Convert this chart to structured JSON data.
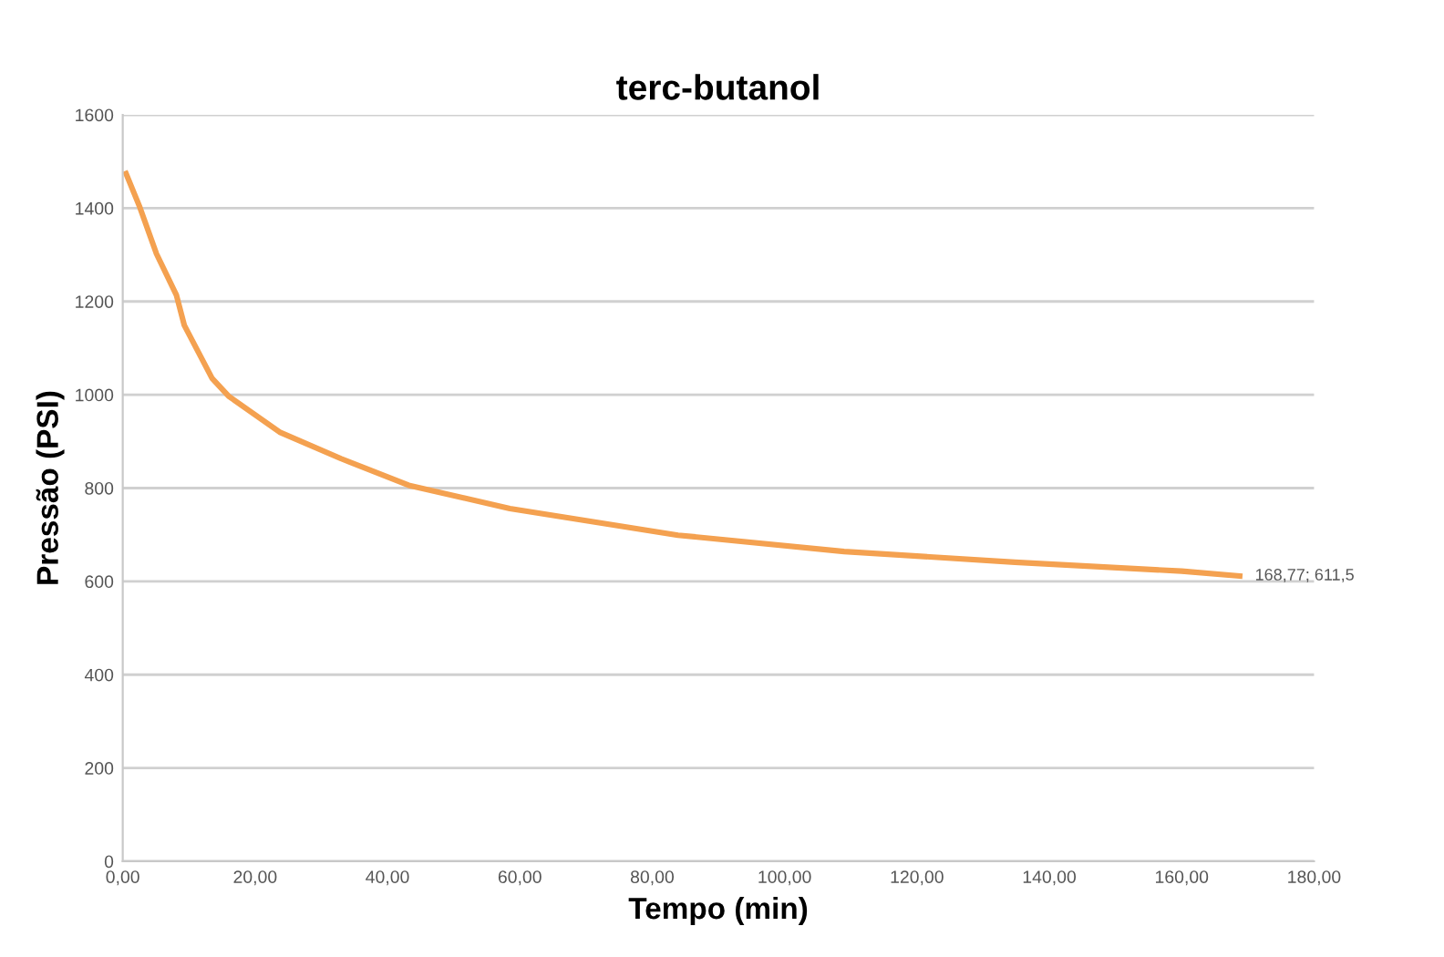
{
  "chart_data": {
    "type": "line",
    "title": "terc-butanol",
    "xlabel": "Tempo (min)",
    "ylabel": "Pressão (PSI)",
    "x": [
      0.5,
      2.5,
      5.1,
      8.1,
      9.3,
      13.5,
      16,
      23.7,
      33,
      43.2,
      58.5,
      83.9,
      109,
      134.8,
      160,
      168.77
    ],
    "series": [
      {
        "color": "#f4a150",
        "values": [
          1474,
          1405,
          1302,
          1214,
          1149,
          1035,
          997,
          920,
          863,
          806,
          756,
          699,
          664,
          641,
          622,
          611.5
        ]
      }
    ],
    "xlim": [
      0,
      180
    ],
    "ylim": [
      0,
      1600
    ],
    "xticks": [
      {
        "value": 0,
        "label": "0,00"
      },
      {
        "value": 20,
        "label": "20,00"
      },
      {
        "value": 40,
        "label": "40,00"
      },
      {
        "value": 60,
        "label": "60,00"
      },
      {
        "value": 80,
        "label": "80,00"
      },
      {
        "value": 100,
        "label": "100,00"
      },
      {
        "value": 120,
        "label": "120,00"
      },
      {
        "value": 140,
        "label": "140,00"
      },
      {
        "value": 160,
        "label": "160,00"
      },
      {
        "value": 180,
        "label": "180,00"
      }
    ],
    "yticks": [
      0,
      200,
      400,
      600,
      800,
      1000,
      1200,
      1400,
      1600
    ],
    "annotations": [
      {
        "text": "168,77; 611,5",
        "x": 168.77,
        "y": 611.5
      }
    ],
    "grid": "y",
    "marker": "none",
    "line_style": "solid"
  }
}
